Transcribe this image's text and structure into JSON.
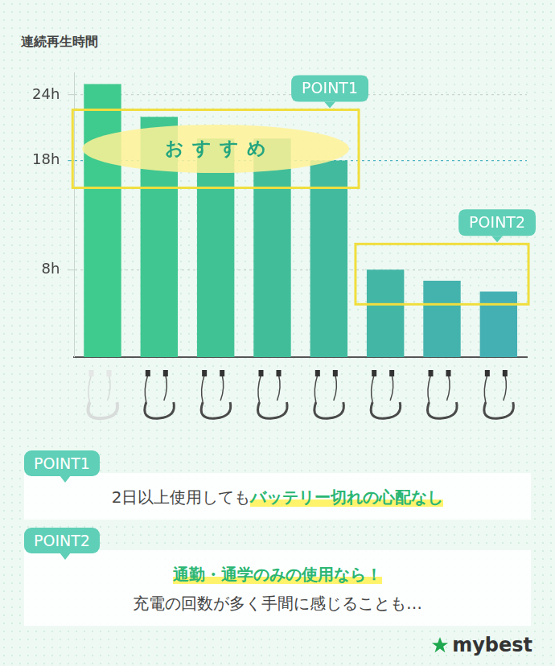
{
  "chart_data": {
    "type": "bar",
    "y_label": "連続再生時間",
    "categories": [
      null,
      null,
      null,
      null,
      null,
      null,
      null,
      null
    ],
    "values": [
      25,
      22,
      20,
      20,
      18,
      8,
      7,
      6
    ],
    "colors": [
      "#3fca8e",
      "#40c691",
      "#41c295",
      "#41be99",
      "#42ba9e",
      "#43b6a6",
      "#44b3ad",
      "#45b0b4"
    ],
    "ylim": [
      0,
      26
    ],
    "yticks": [
      {
        "value": 8,
        "label": "8h"
      },
      {
        "value": 18,
        "label": "18h"
      },
      {
        "value": 24,
        "label": "24h"
      }
    ],
    "grid": true,
    "annotations": [
      {
        "label": "POINT1",
        "text": "おすすめ"
      },
      {
        "label": "POINT2"
      }
    ]
  },
  "notes": [
    {
      "label": "POINT1",
      "lines": [
        {
          "text": "2日以上使用しても",
          "emphasis": "バッテリー切れの心配なし"
        }
      ]
    },
    {
      "label": "POINT2",
      "lines": [
        {
          "emphasis": "通勤・通学のみの使用なら！"
        },
        {
          "text": "充電の回数が多く手間に感じることも…"
        }
      ]
    }
  ],
  "brand": "mybest"
}
